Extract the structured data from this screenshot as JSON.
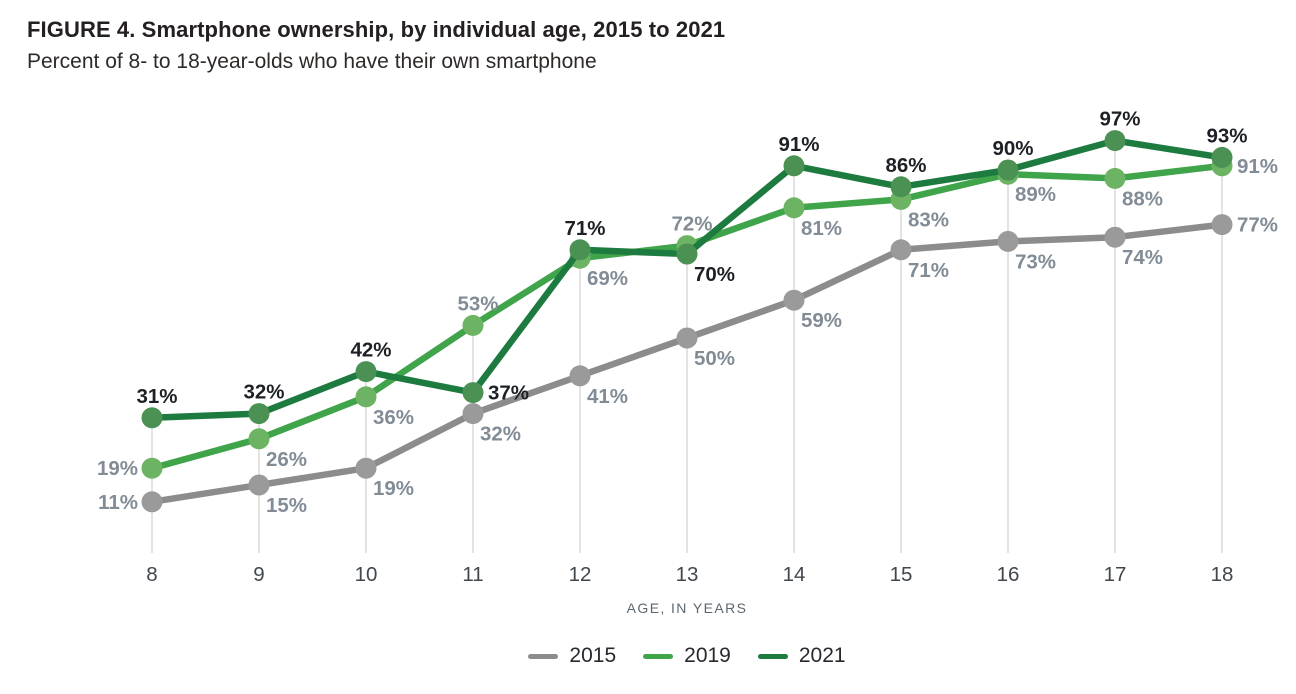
{
  "figure": {
    "title": "FIGURE 4. Smartphone ownership, by individual age, 2015 to 2021",
    "subtitle": "Percent of 8- to 18-year-olds who have their own smartphone"
  },
  "chart_data": {
    "type": "line",
    "x": [
      8,
      9,
      10,
      11,
      12,
      13,
      14,
      15,
      16,
      17,
      18
    ],
    "xlabel": "AGE, IN YEARS",
    "unit": "%",
    "ylim": [
      0,
      100
    ],
    "grid": "vertical-tick-lines-to-topmost-point",
    "legend_position": "bottom-center",
    "series": [
      {
        "name": "2015",
        "color": "#8c8c8c",
        "dot_color": "#9a9a9a",
        "label_color": "#828c96",
        "values": [
          11,
          15,
          19,
          32,
          41,
          50,
          59,
          71,
          73,
          74,
          77
        ],
        "label_pos": [
          "left",
          "below",
          "below",
          "below",
          "below",
          "below",
          "below",
          "below",
          "below",
          "below",
          "right"
        ]
      },
      {
        "name": "2019",
        "color": "#3fa44a",
        "dot_color": "#6cb464",
        "label_color": "#828c96",
        "values": [
          19,
          26,
          36,
          53,
          69,
          72,
          81,
          83,
          89,
          88,
          91
        ],
        "label_pos": [
          "left",
          "below",
          "below",
          "above",
          "below",
          "above",
          "below",
          "below",
          "below",
          "below",
          "right"
        ]
      },
      {
        "name": "2021",
        "color": "#1e7b40",
        "dot_color": "#4a9153",
        "label_color": "#1d2025",
        "values": [
          31,
          32,
          42,
          37,
          71,
          70,
          91,
          86,
          90,
          97,
          93
        ],
        "label_pos": [
          "above",
          "above",
          "above",
          "right",
          "above",
          "below",
          "above",
          "above",
          "above",
          "above",
          "above"
        ]
      }
    ],
    "styles": {
      "gridline_color": "#d0d0d0",
      "tick_label_color": "#40474d",
      "value_label_suffix": "%"
    }
  }
}
